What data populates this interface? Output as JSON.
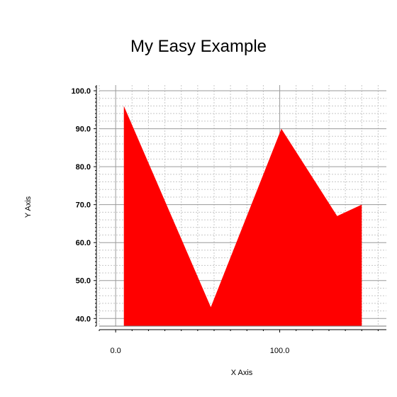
{
  "chart_data": {
    "type": "area",
    "title": "My Easy Example",
    "xlabel": "X Axis",
    "ylabel": "Y Axis",
    "xlim": [
      -10,
      165
    ],
    "ylim": [
      38,
      101.5
    ],
    "x_ticks": [
      {
        "value": 0,
        "label": "0.0"
      },
      {
        "value": 100,
        "label": "100.0"
      }
    ],
    "y_ticks": [
      {
        "value": 40,
        "label": "40.0"
      },
      {
        "value": 50,
        "label": "50.0"
      },
      {
        "value": 60,
        "label": "60.0"
      },
      {
        "value": 70,
        "label": "70.0"
      },
      {
        "value": 80,
        "label": "80.0"
      },
      {
        "value": 90,
        "label": "90.0"
      },
      {
        "value": 100,
        "label": "100.0"
      }
    ],
    "grid": true,
    "series": [
      {
        "color": "#ff0000",
        "x": [
          5,
          58,
          101,
          135,
          150
        ],
        "y": [
          96,
          43,
          90,
          67,
          70
        ]
      }
    ]
  }
}
